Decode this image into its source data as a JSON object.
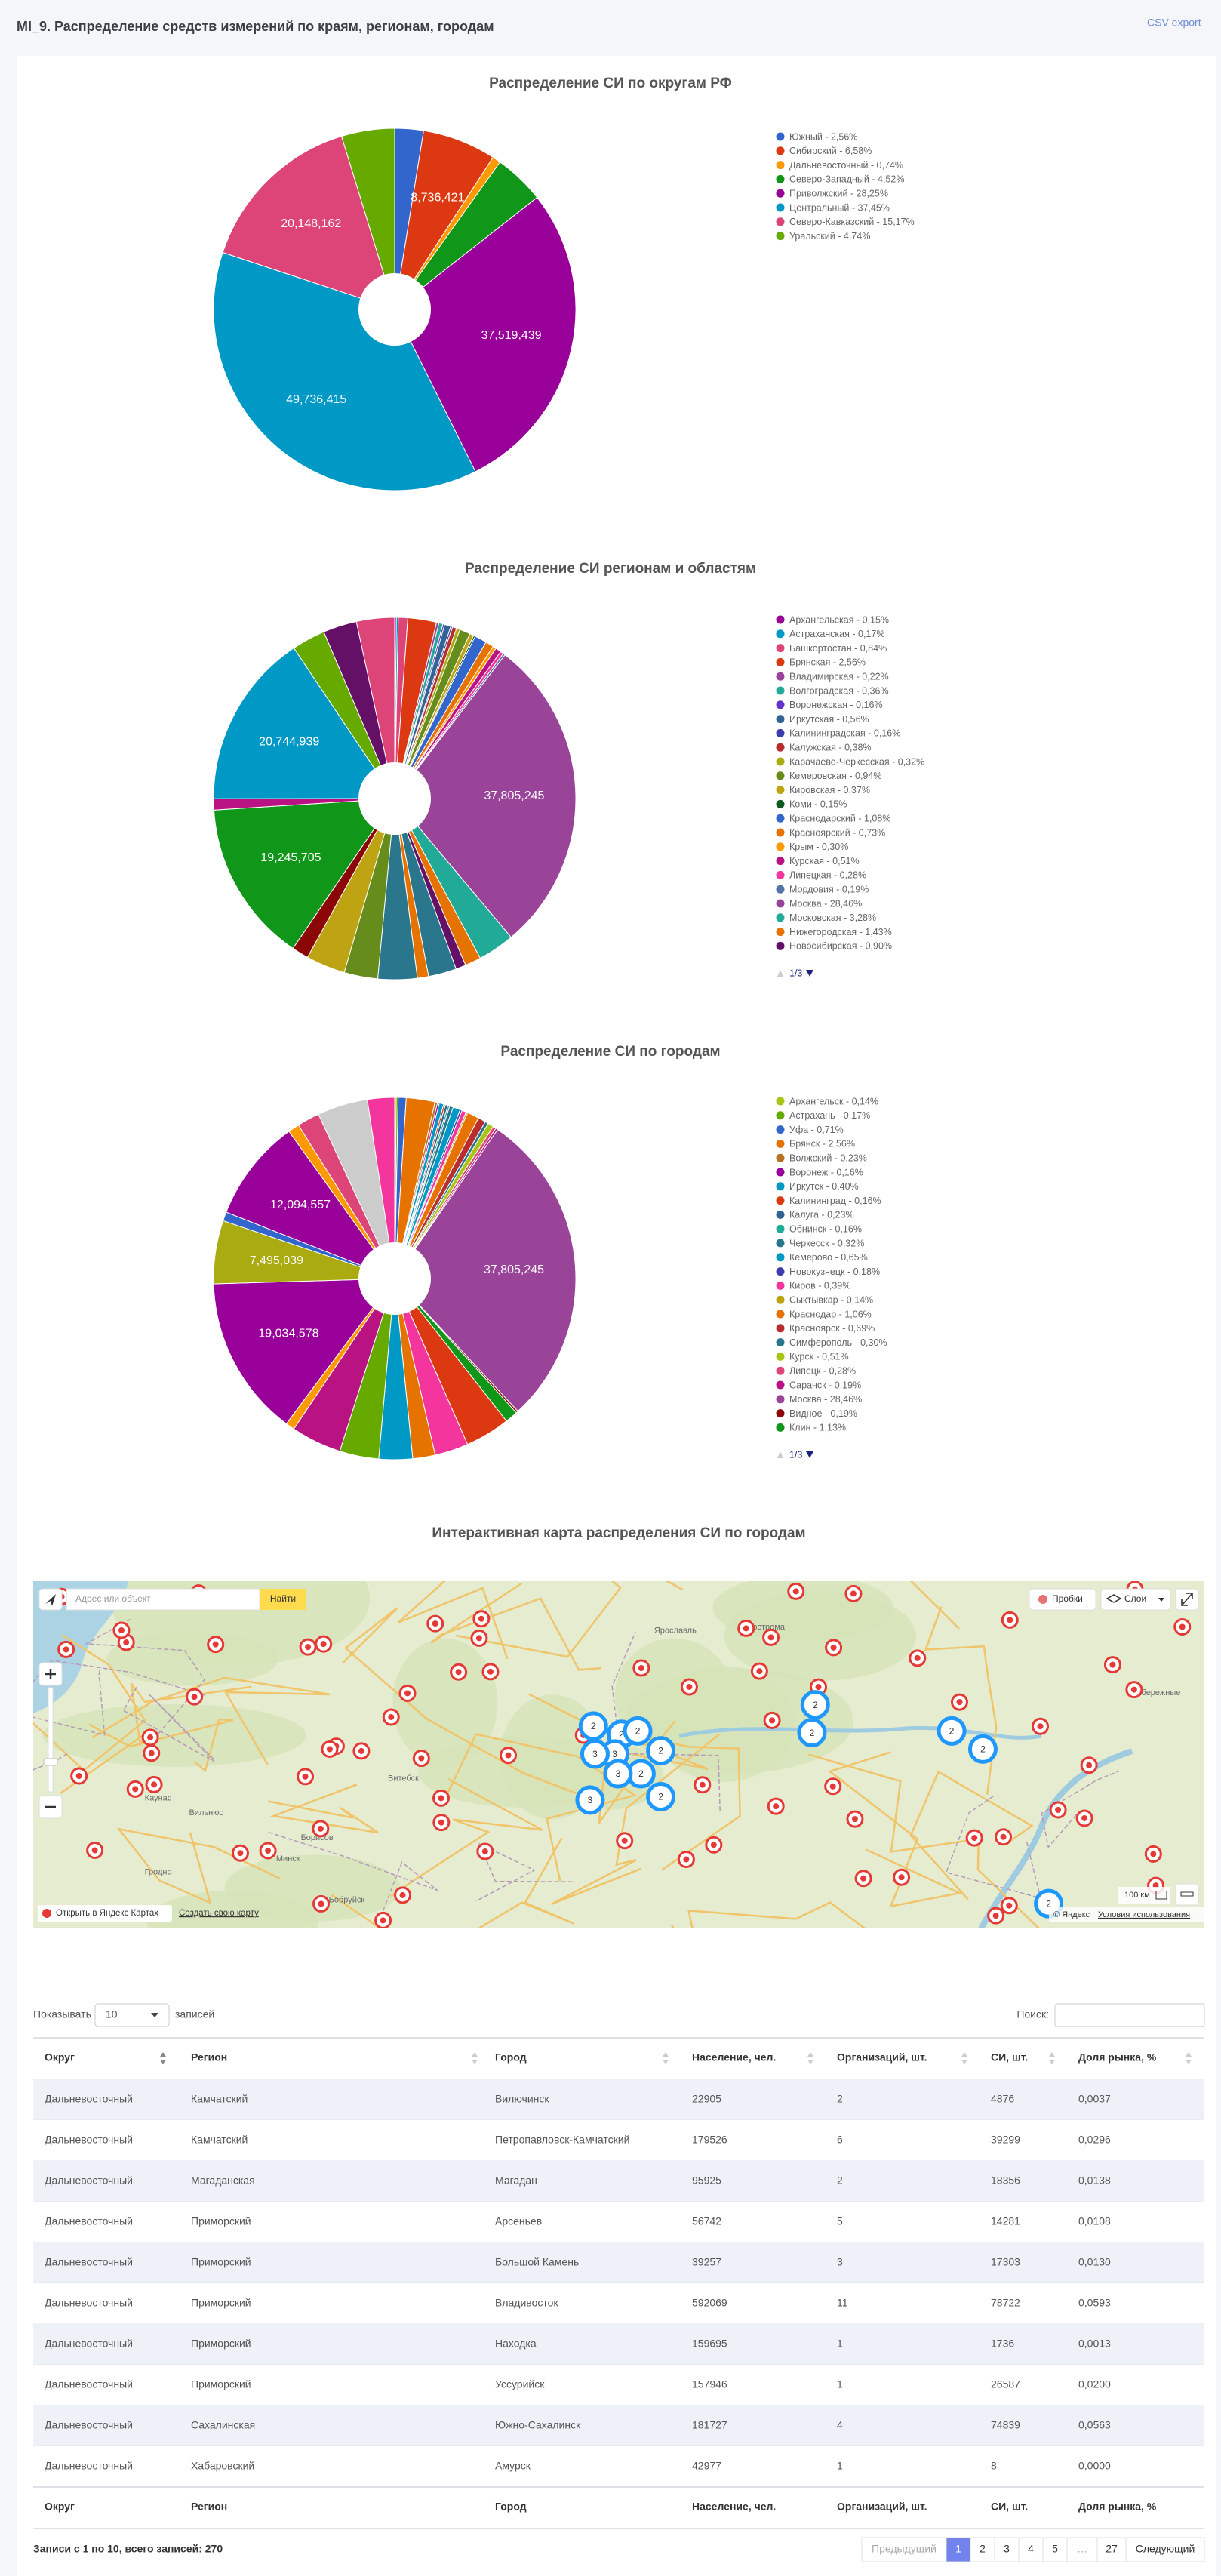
{
  "header": {
    "title": "MI_9. Распределение средств измерений по краям, регионам, городам",
    "export": "CSV export"
  },
  "chart_data": [
    {
      "type": "pie",
      "title": "Распределение СИ по округам РФ",
      "categories": [
        "Южный - 2,56%",
        "Сибирский - 6,58%",
        "Дальневосточный - 0,74%",
        "Северо-Западный - 4,52%",
        "Приволжский - 28,25%",
        "Центральный - 37,45%",
        "Северо-Кавказский - 15,17%",
        "Уральский - 4,74%"
      ],
      "values": [
        3399700,
        8736421,
        982700,
        6002600,
        37519439,
        49736415,
        20148162,
        6294700
      ],
      "value_labels": [
        null,
        "8,736,421",
        null,
        null,
        "37,519,439",
        "49,736,415",
        "20,148,162",
        null
      ],
      "colors": [
        "#3366cc",
        "#dc3912",
        "#ff9900",
        "#109618",
        "#990099",
        "#0099c6",
        "#dd4477",
        "#66aa00"
      ]
    },
    {
      "type": "pie",
      "title": "Распределение СИ регионам и областям",
      "categories": [
        "Архангельская - 0,15%",
        "Астраханская - 0,17%",
        "Башкортостан - 0,84%",
        "Брянская - 2,56%",
        "Владимирская - 0,22%",
        "Волгоградская - 0,36%",
        "Воронежская - 0,16%",
        "Иркутская - 0,56%",
        "Калининградская - 0,16%",
        "Калужская - 0,38%",
        "Карачаево-Черкесская - 0,32%",
        "Кемеровская - 0,94%",
        "Кировская - 0,37%",
        "Коми - 0,15%",
        "Краснодарский - 1,08%",
        "Красноярский - 0,73%",
        "Крым - 0,30%",
        "Курская - 0,51%",
        "Липецкая - 0,28%",
        "Мордовия - 0,19%",
        "Москва - 28,46%",
        "Московская - 3,28%",
        "Нижегородская - 1,43%",
        "Новосибирская - 0,90%",
        null,
        null,
        null,
        null,
        null,
        null,
        null,
        null,
        null,
        null,
        null,
        null
      ],
      "values": [
        199200,
        225800,
        1115500,
        3399700,
        292200,
        478100,
        212500,
        743700,
        212500,
        504600,
        425000,
        1248300,
        491400,
        199200,
        1434200,
        969400,
        398400,
        677300,
        371800,
        252300,
        37805245,
        4355800,
        1899000,
        1195200,
        3320000,
        1328000,
        4648000,
        3984000,
        4648000,
        1992000,
        19245705,
        1328000,
        20744939,
        3984000,
        3984000,
        4515200
      ],
      "value_labels": [
        null,
        null,
        null,
        null,
        null,
        null,
        null,
        null,
        null,
        null,
        null,
        null,
        null,
        null,
        null,
        null,
        null,
        null,
        null,
        null,
        "37,805,245",
        null,
        null,
        null,
        null,
        null,
        null,
        null,
        null,
        null,
        "19,245,705",
        null,
        "20,744,939",
        null,
        null,
        null
      ],
      "colors": [
        "#990099",
        "#0099c6",
        "#dd4477",
        "#dc3912",
        "#994499",
        "#22aa99",
        "#6633cc",
        "#316395",
        "#3b3eac",
        "#b82e2e",
        "#aaaa11",
        "#668d1c",
        "#bea413",
        "#0c5922",
        "#3366cc",
        "#e67300",
        "#ff9900",
        "#b91383",
        "#f4359e",
        "#5574a6",
        "#994499",
        "#22aa99",
        "#e67300",
        "#651067",
        "#2a778d",
        "#e67300",
        "#2a778d",
        "#668d1c",
        "#bea413",
        "#8b0707",
        "#109618",
        "#b91383",
        "#0099c6",
        "#66aa00",
        "#651067",
        "#dd4477"
      ],
      "legend_page": "1/3"
    },
    {
      "type": "pie",
      "title": "Распределение СИ по городам",
      "categories": [
        "Архангельск - 0,14%",
        "Астрахань - 0,17%",
        "Уфа - 0,71%",
        "Брянск - 2,56%",
        "Волжский - 0,23%",
        "Воронеж - 0,16%",
        "Иркутск - 0,40%",
        "Калининград - 0,16%",
        "Калуга - 0,23%",
        "Обнинск - 0,16%",
        "Черкесск - 0,32%",
        "Кемерово - 0,65%",
        "Новокузнецк - 0,18%",
        "Киров - 0,39%",
        "Сыктывкар - 0,14%",
        "Краснодар - 1,06%",
        "Красноярск - 0,69%",
        "Симферополь - 0,30%",
        "Курск - 0,51%",
        "Липецк - 0,28%",
        "Саранск - 0,19%",
        "Москва - 28,46%",
        "Видное - 0,19%",
        "Клин - 1,13%",
        null,
        null,
        null,
        null,
        null,
        null,
        null,
        null,
        null,
        null,
        null,
        null,
        null,
        null,
        null
      ],
      "values": [
        185900,
        225800,
        942900,
        3399700,
        305400,
        212500,
        531200,
        212500,
        305400,
        212500,
        425000,
        863200,
        239000,
        517900,
        185900,
        1407700,
        916300,
        398400,
        677300,
        371800,
        252300,
        37805245,
        252300,
        1500600,
        5312000,
        3984000,
        2656000,
        3984000,
        4648000,
        5976000,
        1062400,
        19034578,
        7495039,
        1062400,
        12094557,
        1328000,
        2656000,
        5976000,
        3213800
      ],
      "value_labels": [
        null,
        null,
        null,
        null,
        null,
        null,
        null,
        null,
        null,
        null,
        null,
        null,
        null,
        null,
        null,
        null,
        null,
        null,
        null,
        null,
        null,
        "37,805,245",
        null,
        null,
        null,
        null,
        null,
        null,
        null,
        null,
        null,
        "19,034,578",
        "7,495,039",
        null,
        "12,094,557",
        null,
        null,
        null,
        null
      ],
      "colors": [
        "#a9c413",
        "#66aa00",
        "#3366cc",
        "#e67300",
        "#b77322",
        "#990099",
        "#0099c6",
        "#dc3912",
        "#316395",
        "#22aa99",
        "#2a778d",
        "#0099c6",
        "#3b3eac",
        "#f4359e",
        "#bea413",
        "#e67300",
        "#b82e2e",
        "#2a778d",
        "#a9c413",
        "#dd4477",
        "#b91383",
        "#994499",
        "#8b0707",
        "#109618",
        "#dc3912",
        "#f4359e",
        "#e67300",
        "#0099c6",
        "#66aa00",
        "#b91383",
        "#ff9900",
        "#990099",
        "#aaaa11",
        "#3366cc",
        "#990099",
        "#ff9900",
        "#dd4477",
        "#cccccc",
        "#f4359e"
      ],
      "legend_page": "1/3"
    }
  ],
  "map": {
    "title": "Интерактивная карта распределения СИ по городам",
    "search_placeholder": "Адрес или объект",
    "search_button": "Найти",
    "traffic": "Пробки",
    "layers": "Слои",
    "open_link": "Открыть в Яндекс Картах",
    "create_link": "Создать свою карту",
    "scale": "100 км",
    "attribution": "© Яндекс",
    "terms": "Условия использования",
    "places": [
      "Каунас",
      "Вильнюс",
      "Гродно",
      "Минск",
      "Борисов",
      "Бобруйск",
      "Витебск",
      "Ярославль",
      "Кострома",
      "Набережные"
    ],
    "clusters": [
      "2",
      "2",
      "2",
      "2",
      "3",
      "2",
      "3",
      "3",
      "2",
      "3",
      "2",
      "2",
      "2",
      "2",
      "2"
    ]
  },
  "table": {
    "show": "Показывать",
    "length": "10",
    "entries": "записей",
    "search": "Поиск:",
    "columns": [
      "Округ",
      "Регион",
      "Город",
      "Население, чел.",
      "Организаций, шт.",
      "СИ, шт.",
      "Доля рынка, %"
    ],
    "rows": [
      [
        "Дальневосточный",
        "Камчатский",
        "Вилючинск",
        "22905",
        "2",
        "4876",
        "0,0037"
      ],
      [
        "Дальневосточный",
        "Камчатский",
        "Петропавловск-Камчатский",
        "179526",
        "6",
        "39299",
        "0,0296"
      ],
      [
        "Дальневосточный",
        "Магаданская",
        "Магадан",
        "95925",
        "2",
        "18356",
        "0,0138"
      ],
      [
        "Дальневосточный",
        "Приморский",
        "Арсеньев",
        "56742",
        "5",
        "14281",
        "0,0108"
      ],
      [
        "Дальневосточный",
        "Приморский",
        "Большой Камень",
        "39257",
        "3",
        "17303",
        "0,0130"
      ],
      [
        "Дальневосточный",
        "Приморский",
        "Владивосток",
        "592069",
        "11",
        "78722",
        "0,0593"
      ],
      [
        "Дальневосточный",
        "Приморский",
        "Находка",
        "159695",
        "1",
        "1736",
        "0,0013"
      ],
      [
        "Дальневосточный",
        "Приморский",
        "Уссурийск",
        "157946",
        "1",
        "26587",
        "0,0200"
      ],
      [
        "Дальневосточный",
        "Сахалинская",
        "Южно-Сахалинск",
        "181727",
        "4",
        "74839",
        "0,0563"
      ],
      [
        "Дальневосточный",
        "Хабаровский",
        "Амурск",
        "42977",
        "1",
        "8",
        "0,0000"
      ]
    ],
    "info": "Записи с 1 по 10, всего записей: 270",
    "pagination": [
      "Предыдущий",
      "1",
      "2",
      "3",
      "4",
      "5",
      "…",
      "27",
      "Следующий"
    ]
  }
}
